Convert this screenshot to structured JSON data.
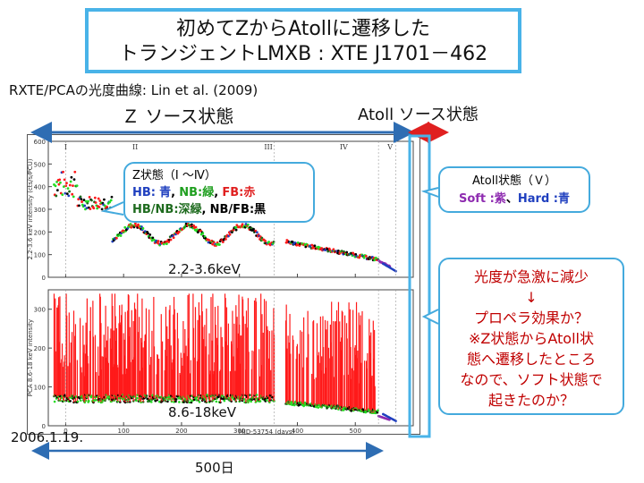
{
  "title": {
    "line1": "初めてZからAtollに遷移した",
    "line2": "トランジェントLMXB : XTE J1701－462"
  },
  "subtitle": "RXTE/PCAの光度曲線: Lin et al. (2009)",
  "state_labels": {
    "z": "Ｚ ソース状態",
    "atoll": "Atoll ソース状態"
  },
  "callouts": {
    "z_state": {
      "line1": "Z状態（Ⅰ ～Ⅳ）",
      "line2_prefix_hb": "HB:",
      "hb_color": "青",
      "sep1": ",",
      "nb": "NB:",
      "nb_color": "緑",
      "sep2": ",",
      "fb": "FB:",
      "fb_color": "赤",
      "hbnb": "HB/NB:",
      "hbnb_color": "深緑",
      "sep3": ",",
      "nbfb": "NB/FB:",
      "nbfb_color": "黒"
    },
    "atoll_state": {
      "line1": "Atoll状態（Ｖ）",
      "soft": "Soft :",
      "soft_color": "紫",
      "sep": "、",
      "hard": "Hard :",
      "hard_color": "青"
    },
    "drop": {
      "line1": "光度が急激に減少",
      "arrow": "↓",
      "line2": "プロペラ効果か？",
      "line3": "※Z状態からAtoll状",
      "line4": "態へ遷移したところ",
      "line5": "なので、ソフト状態で",
      "line6": "起きたのか？"
    }
  },
  "band_labels": {
    "top": "2.2-3.6keV",
    "bottom": "8.6-18keV"
  },
  "date_label": "2006.1.19.",
  "span_label": "500日",
  "colors": {
    "HB": "#1f3fbf",
    "NB": "#22dd22",
    "FB": "#ff1a1a",
    "HB_NB": "#1e6b1e",
    "NB_FB": "#000000",
    "soft": "#8e2bb0",
    "hard": "#1f3fbf",
    "arrow_blue": "#2e6db3",
    "arrow_red": "#e02020",
    "box_border": "#49b3e8"
  },
  "chart_data": {
    "type": "scatter",
    "panels": [
      {
        "name": "2.2-3.6keV",
        "ylabel": "2.2-3.6 keV intensity (cts/s/PCU)",
        "ylim": [
          0,
          600
        ],
        "yticks": [
          0,
          100,
          200,
          300,
          400,
          500,
          600
        ]
      },
      {
        "name": "8.6-18keV",
        "ylabel": "PCA 8.6-18 keV intensity",
        "ylim": [
          0,
          350
        ],
        "yticks": [
          0,
          100,
          200,
          300
        ]
      }
    ],
    "xlabel": "MJD-53754 (days)",
    "xlim": [
      -30,
      600
    ],
    "xticks": [
      0,
      100,
      200,
      300,
      400,
      500
    ],
    "state_boundaries": [
      0,
      360,
      540,
      570
    ],
    "top_markers": [
      "I",
      "II",
      "III",
      "IV",
      "V"
    ]
  }
}
